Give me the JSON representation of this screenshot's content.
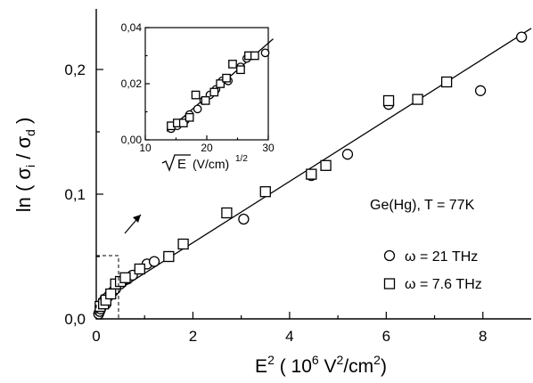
{
  "chart_data": [
    {
      "type": "scatter",
      "title": "",
      "xlabel": "E² ( 10⁶ V²/cm²)",
      "ylabel": "ln ( σᵢ / σd )",
      "xlim": [
        0,
        9
      ],
      "ylim": [
        0,
        0.25
      ],
      "x_ticks": [
        0,
        2,
        4,
        6,
        8
      ],
      "x_tick_labels": [
        "0",
        "2",
        "4",
        "6",
        "8"
      ],
      "y_ticks": [
        0,
        0.1,
        0.2
      ],
      "y_tick_labels": [
        "0,0",
        "0,1",
        "0,2"
      ],
      "grid": false,
      "annotation": "Ge(Hg),  T = 77K",
      "legend_position": "lower-right",
      "fit_line": {
        "x": [
          0,
          9
        ],
        "y": [
          0.012,
          0.233
        ]
      },
      "series": [
        {
          "name": "ω = 21 THz",
          "marker": "circle",
          "x": [
            0.05,
            0.07,
            0.09,
            0.1,
            0.12,
            0.15,
            0.18,
            0.2,
            0.25,
            0.3,
            0.35,
            0.4,
            0.5,
            0.55,
            0.65,
            0.75,
            0.9,
            1.05,
            1.2,
            1.5,
            3.05,
            4.45,
            5.2,
            6.05,
            7.95,
            8.8
          ],
          "y": [
            0.004,
            0.006,
            0.008,
            0.01,
            0.012,
            0.014,
            0.016,
            0.012,
            0.018,
            0.02,
            0.022,
            0.024,
            0.028,
            0.03,
            0.032,
            0.035,
            0.04,
            0.044,
            0.046,
            0.05,
            0.08,
            0.115,
            0.132,
            0.172,
            0.183,
            0.226
          ]
        },
        {
          "name": "ω = 7.6 THz",
          "marker": "square",
          "x": [
            0.08,
            0.15,
            0.2,
            0.3,
            0.4,
            0.5,
            0.6,
            0.9,
            1.5,
            1.8,
            2.7,
            3.5,
            4.45,
            4.75,
            6.05,
            6.65,
            7.25
          ],
          "y": [
            0.01,
            0.012,
            0.015,
            0.02,
            0.028,
            0.03,
            0.033,
            0.04,
            0.05,
            0.06,
            0.085,
            0.102,
            0.116,
            0.123,
            0.175,
            0.176,
            0.19
          ]
        }
      ]
    },
    {
      "type": "scatter",
      "title": "",
      "xlabel": "√E (V/cm)¹ᐟ²",
      "xlabel_main": "(V/cm)",
      "xlabel_sup": "1/2",
      "xlabel_root": "E",
      "ylabel": "",
      "xlim": [
        10,
        30
      ],
      "ylim": [
        0,
        0.04
      ],
      "x_ticks": [
        10,
        20,
        30
      ],
      "x_tick_labels": [
        "10",
        "20",
        "30"
      ],
      "y_ticks": [
        0,
        0.02,
        0.04
      ],
      "y_tick_labels": [
        "0,00",
        "0,02",
        "0,04"
      ],
      "fit_line": {
        "x": [
          13.5,
          30.8
        ],
        "y": [
          0.003,
          0.036
        ]
      },
      "series": [
        {
          "marker": "circle",
          "x": [
            14.2,
            15.2,
            15.8,
            16.5,
            17.2,
            18.5,
            19.5,
            20.5,
            21.5,
            22.5,
            23.5,
            25.5,
            26.5,
            29.5
          ],
          "y": [
            0.004,
            0.005,
            0.006,
            0.007,
            0.009,
            0.011,
            0.014,
            0.016,
            0.018,
            0.021,
            0.021,
            0.026,
            0.029,
            0.031
          ]
        },
        {
          "marker": "square",
          "x": [
            14.2,
            15.2,
            16.2,
            17.2,
            18.2,
            19.8,
            21.2,
            22.2,
            23.2,
            24.2,
            25.5,
            26.8,
            27.8
          ],
          "y": [
            0.005,
            0.006,
            0.006,
            0.008,
            0.016,
            0.014,
            0.017,
            0.02,
            0.022,
            0.027,
            0.025,
            0.03,
            0.03
          ]
        }
      ]
    }
  ]
}
